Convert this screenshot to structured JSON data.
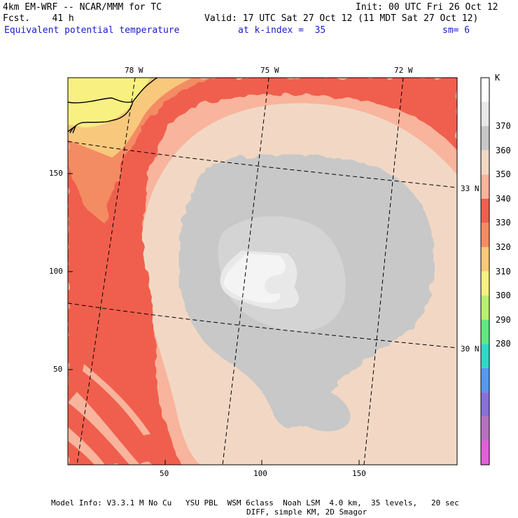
{
  "header": {
    "model_title": "4km EM-WRF -- NCAR/MMM for TC",
    "init_time": "Init: 00 UTC Fri 26 Oct 12",
    "forecast_hour": "Fcst.    41 h",
    "valid_time": "Valid: 17 UTC Sat 27 Oct 12 (11 MDT Sat 27 Oct 12)",
    "field_name": "Equivalent potential temperature",
    "level": "at k-index =  35",
    "smoothing": "sm= 6"
  },
  "map": {
    "top_lon_labels": [
      "78 W",
      "75 W",
      "72 W"
    ],
    "right_lat_labels": [
      "33 N",
      "30 N"
    ],
    "x_ticks": [
      "50",
      "100",
      "150"
    ],
    "y_ticks": [
      "150",
      "100",
      "50"
    ]
  },
  "legend": {
    "unit": "K",
    "labels": [
      "370",
      "360",
      "350",
      "340",
      "330",
      "320",
      "310",
      "300",
      "290",
      "280"
    ],
    "colors": [
      "#ffffff",
      "#e8e8e8",
      "#c8c8c8",
      "#f2d8c4",
      "#f8b49c",
      "#f05e4e",
      "#f48c64",
      "#f8c87c",
      "#f8f080",
      "#b8f070",
      "#60e880",
      "#30d8c8",
      "#5898f0",
      "#8870d8",
      "#b870c0",
      "#e060d8"
    ]
  },
  "footer": {
    "line1": "Model Info: V3.3.1 M No Cu   YSU PBL  WSM 6class  Noah LSM  4.0 km,  35 levels,   20 sec",
    "line2": "DIFF, simple KM, 2D Smagor"
  }
}
